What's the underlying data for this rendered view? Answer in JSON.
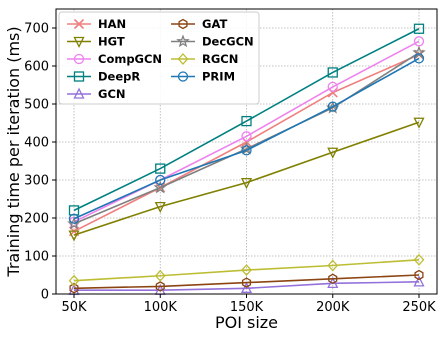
{
  "chart_data": {
    "type": "line",
    "xlabel": "POI size",
    "ylabel": "Training time per iteration (ms)",
    "categories": [
      "50K",
      "100K",
      "150K",
      "200K",
      "250K"
    ],
    "ylim": [
      0,
      750
    ],
    "yticks": [
      0,
      100,
      200,
      300,
      400,
      500,
      600,
      700
    ],
    "grid": true,
    "legend_position": "top-left",
    "series": [
      {
        "name": "HAN",
        "color": "#f08080",
        "marker": "x",
        "values": [
          165,
          280,
          400,
          530,
          630
        ]
      },
      {
        "name": "HGT",
        "color": "#808000",
        "marker": "triangle-down",
        "values": [
          155,
          230,
          293,
          373,
          452
        ]
      },
      {
        "name": "CompGCN",
        "color": "#ee82ee",
        "marker": "circle",
        "values": [
          190,
          300,
          415,
          545,
          665
        ]
      },
      {
        "name": "DeepR",
        "color": "#008080",
        "marker": "square",
        "values": [
          220,
          330,
          455,
          583,
          698
        ]
      },
      {
        "name": "GCN",
        "color": "#9370db",
        "marker": "triangle-up",
        "values": [
          10,
          10,
          15,
          28,
          32
        ]
      },
      {
        "name": "GAT",
        "color": "#8b4513",
        "marker": "hexagon",
        "values": [
          15,
          20,
          30,
          40,
          50
        ]
      },
      {
        "name": "DecGCN",
        "color": "#808080",
        "marker": "star",
        "values": [
          185,
          280,
          382,
          490,
          635
        ]
      },
      {
        "name": "RGCN",
        "color": "#bdbd33",
        "marker": "diamond",
        "values": [
          35,
          48,
          63,
          75,
          90
        ]
      },
      {
        "name": "PRIM",
        "color": "#1f77b4",
        "marker": "circle",
        "values": [
          198,
          300,
          378,
          493,
          620
        ]
      }
    ]
  }
}
